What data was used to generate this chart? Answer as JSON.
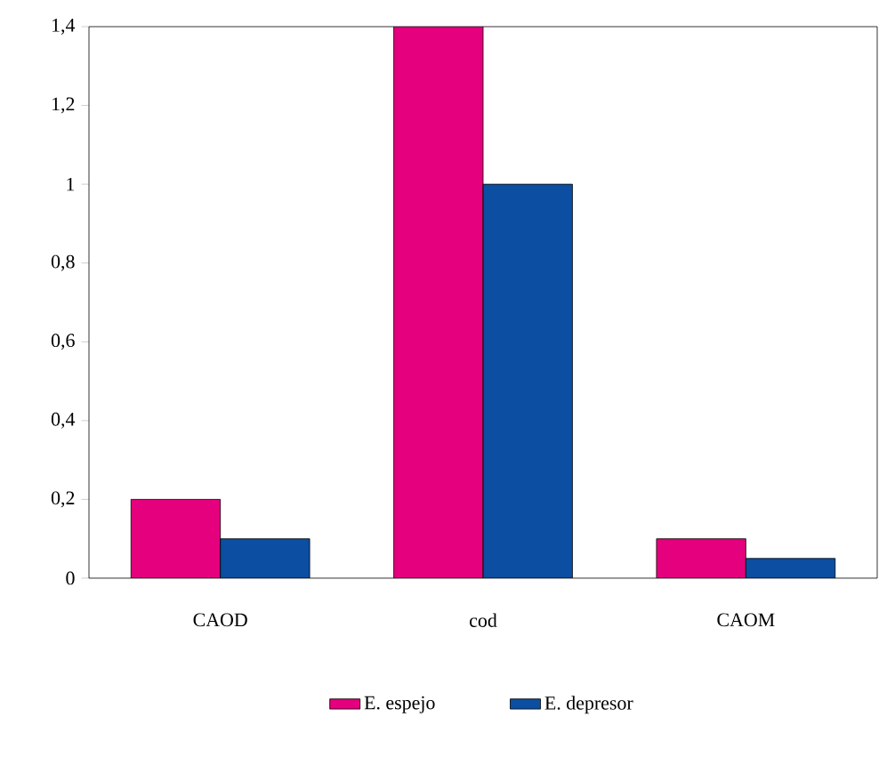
{
  "chart_data": {
    "type": "bar",
    "categories": [
      "CAOD",
      "cod",
      "CAOM"
    ],
    "series": [
      {
        "name": "E. espejo",
        "color": "#e5007d",
        "values": [
          0.2,
          1.4,
          0.1
        ]
      },
      {
        "name": "E. depresor",
        "color": "#0b4ea2",
        "values": [
          0.1,
          1.0,
          0.05
        ]
      }
    ],
    "ylim": [
      0,
      1.4
    ],
    "yticks": [
      0,
      {
        "value": 0.2,
        "label": "0,2"
      },
      {
        "value": 0.4,
        "label": "0,4"
      },
      {
        "value": 0.6,
        "label": "0,6"
      },
      {
        "value": 0.8,
        "label": "0,8"
      },
      1,
      {
        "value": 1.2,
        "label": "1,2"
      },
      {
        "value": 1.4,
        "label": "1,4"
      }
    ],
    "legend": "bottom"
  }
}
